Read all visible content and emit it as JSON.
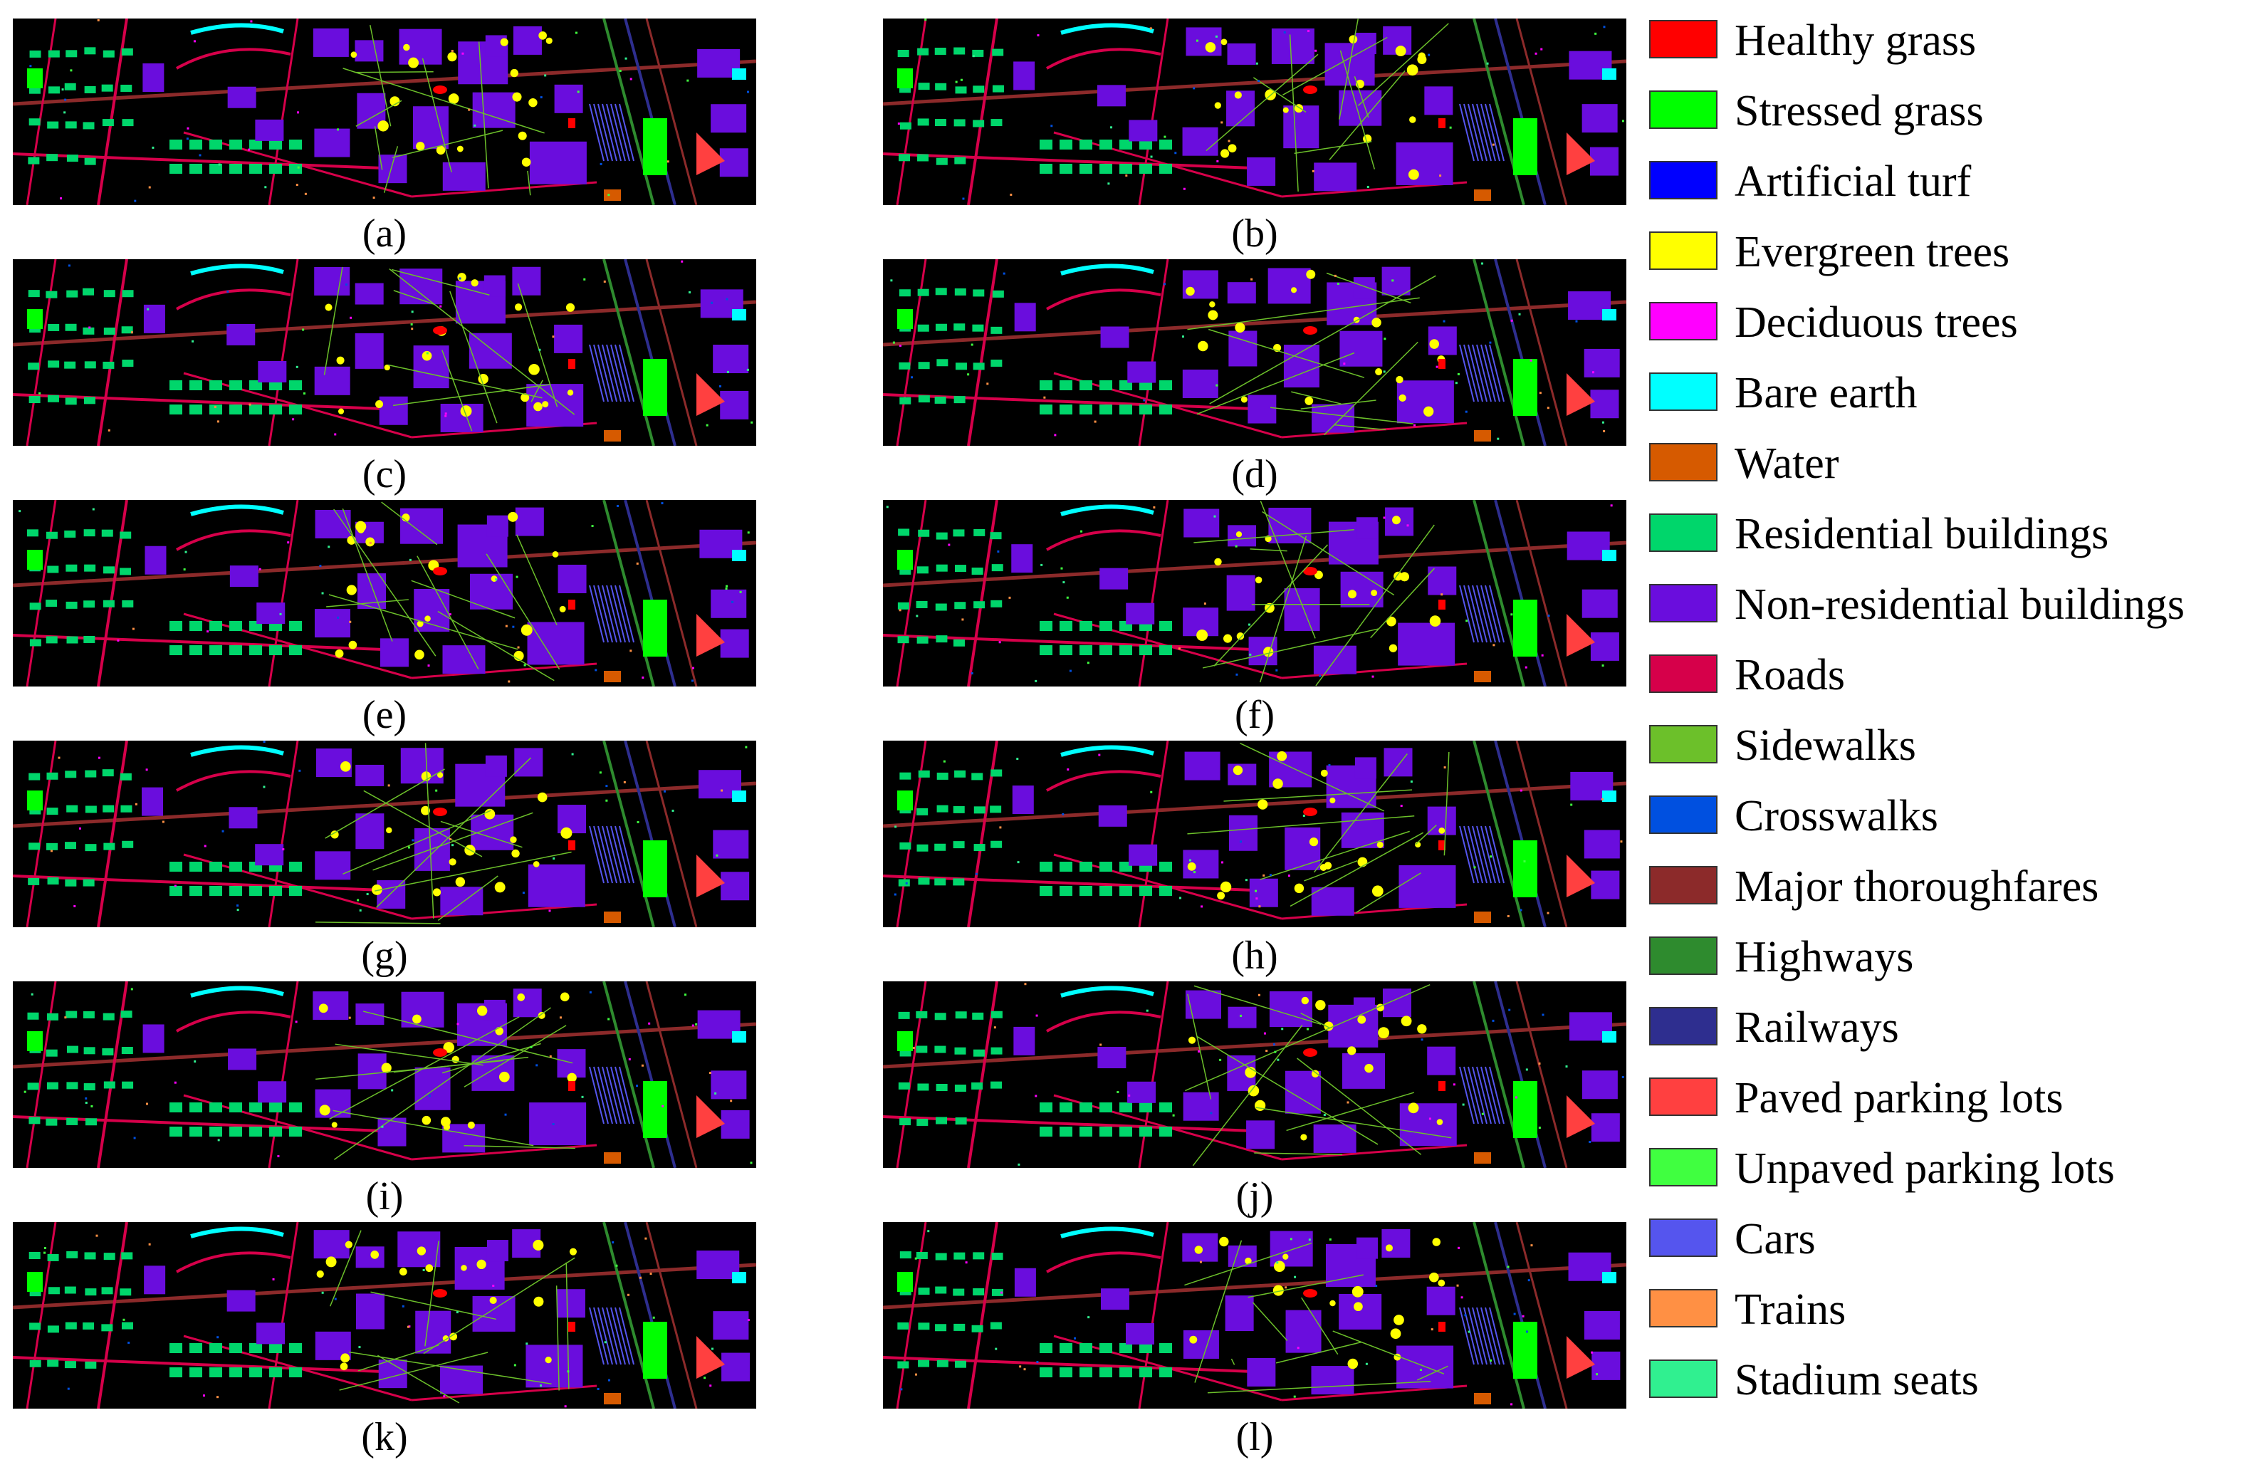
{
  "panels": [
    {
      "label": "(a)"
    },
    {
      "label": "(b)"
    },
    {
      "label": "(c)"
    },
    {
      "label": "(d)"
    },
    {
      "label": "(e)"
    },
    {
      "label": "(f)"
    },
    {
      "label": "(g)"
    },
    {
      "label": "(h)"
    },
    {
      "label": "(i)"
    },
    {
      "label": "(j)"
    },
    {
      "label": "(k)"
    },
    {
      "label": "(l)"
    }
  ],
  "legend": [
    {
      "label": "Healthy grass",
      "color": "#ff0000"
    },
    {
      "label": "Stressed grass",
      "color": "#00ff00"
    },
    {
      "label": "Artificial turf",
      "color": "#0000ff"
    },
    {
      "label": "Evergreen trees",
      "color": "#ffff00"
    },
    {
      "label": "Deciduous trees",
      "color": "#ff00ff"
    },
    {
      "label": "Bare earth",
      "color": "#00ffff"
    },
    {
      "label": "Water",
      "color": "#d65a00"
    },
    {
      "label": "Residential buildings",
      "color": "#00d66b"
    },
    {
      "label": "Non-residential buildings",
      "color": "#6a0ddd"
    },
    {
      "label": "Roads",
      "color": "#d6004a"
    },
    {
      "label": "Sidewalks",
      "color": "#6cc02a"
    },
    {
      "label": "Crosswalks",
      "color": "#0050e0"
    },
    {
      "label": "Major thoroughfares",
      "color": "#8c2a2a"
    },
    {
      "label": "Highways",
      "color": "#2e8b2e"
    },
    {
      "label": "Railways",
      "color": "#2e2e8f"
    },
    {
      "label": "Paved parking lots",
      "color": "#ff4040"
    },
    {
      "label": "Unpaved parking lots",
      "color": "#40ff40"
    },
    {
      "label": "Cars",
      "color": "#5555ee"
    },
    {
      "label": "Trains",
      "color": "#ff9044"
    },
    {
      "label": "Stadium seats",
      "color": "#30f090"
    }
  ]
}
